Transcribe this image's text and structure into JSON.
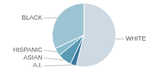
{
  "chart_data": {
    "type": "pie",
    "categories": [
      "WHITE",
      "A.I.",
      "ASIAN",
      "HISPANIC",
      "BLACK"
    ],
    "values": [
      54,
      3,
      7,
      4,
      32
    ],
    "colors": [
      "#cdd9e3",
      "#3a7a9c",
      "#5a9ab5",
      "#8abcce",
      "#9dc4d2"
    ]
  }
}
